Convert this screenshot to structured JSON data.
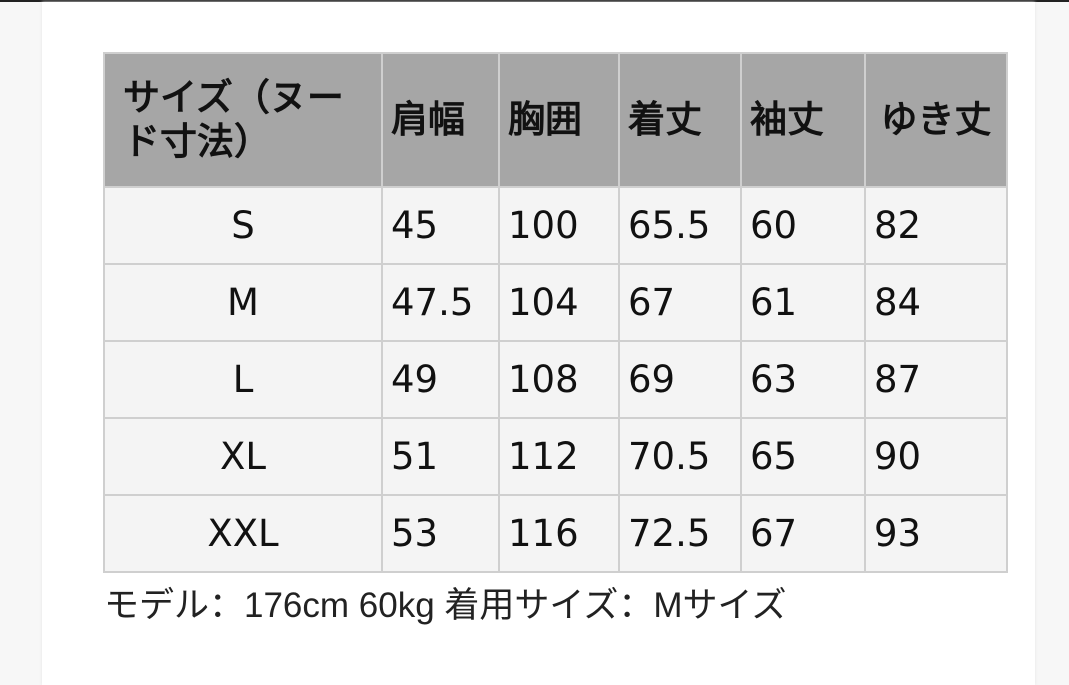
{
  "table": {
    "headers": [
      "サイズ（ヌード寸法）",
      "肩幅",
      "胸囲",
      "着丈",
      "袖丈",
      "ゆき丈"
    ],
    "rows": [
      [
        "S",
        "45",
        "100",
        "65.5",
        "60",
        "82"
      ],
      [
        "M",
        "47.5",
        "104",
        "67",
        "61",
        "84"
      ],
      [
        "L",
        "49",
        "108",
        "69",
        "63",
        "87"
      ],
      [
        "XL",
        "51",
        "112",
        "70.5",
        "65",
        "90"
      ],
      [
        "XXL",
        "53",
        "116",
        "72.5",
        "67",
        "93"
      ]
    ]
  },
  "caption": "モデル：176cm 60kg 着用サイズ：Mサイズ",
  "colors": {
    "header_bg": "#a6a6a6",
    "row_bg": "#f4f4f4",
    "border": "#cfcfcf"
  }
}
